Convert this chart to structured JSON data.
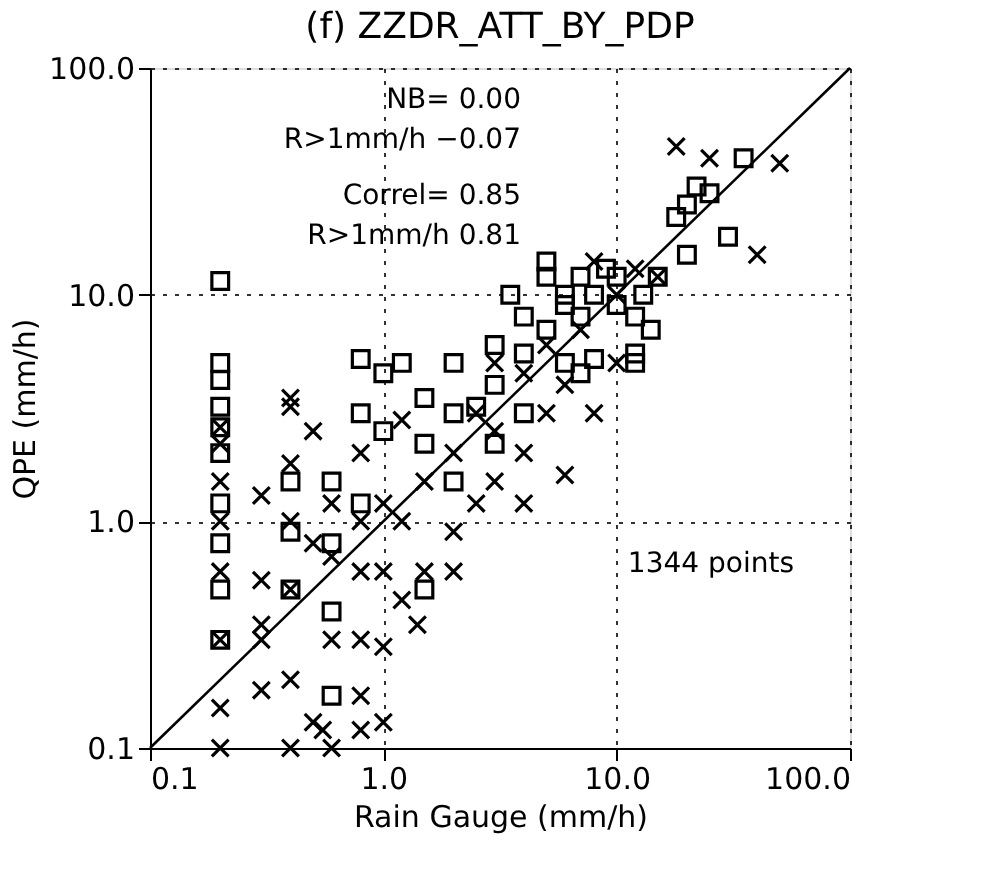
{
  "chart_data": {
    "type": "scatter",
    "title": "(f) ZZDR_ATT_BY_PDP",
    "xlabel": "Rain Gauge (mm/h)",
    "ylabel": "QPE (mm/h)",
    "log": "xy",
    "grid": true,
    "xlim": [
      0.1,
      100
    ],
    "ylim": [
      0.1,
      100
    ],
    "xticks": [
      0.1,
      {
        "value": 1,
        "label": "1.0"
      },
      {
        "value": 10,
        "label": "10.0"
      },
      {
        "value": 100,
        "label": "100.0"
      }
    ],
    "yticks": [
      0.1,
      {
        "value": 1,
        "label": "1.0"
      },
      {
        "value": 10,
        "label": "10.0"
      },
      {
        "value": 100,
        "label": "100.0"
      }
    ],
    "annotations": [
      "NB= 0.00",
      "R>1mm/h −0.07",
      "Correl= 0.85",
      "R>1mm/h 0.81",
      "1344 points"
    ],
    "series": [
      {
        "type": "line",
        "color": "#000000",
        "marker": "none",
        "line_style": "solid",
        "x": [
          0.1,
          100
        ],
        "values": [
          0.1,
          100
        ]
      },
      {
        "color": "#000000",
        "marker": "square",
        "x": [
          0.2,
          0.2,
          0.2,
          0.2,
          0.2,
          0.2,
          0.2,
          0.2,
          0.2,
          0.2,
          0.4,
          0.4,
          0.4,
          0.6,
          0.6,
          0.6,
          0.6,
          0.8,
          0.8,
          0.8,
          1.0,
          1.0,
          1.2,
          1.5,
          1.5,
          1.5,
          2,
          2,
          2,
          2.5,
          3,
          3,
          3,
          3.5,
          4,
          4,
          4,
          5,
          5,
          5,
          6,
          6,
          6,
          7,
          7,
          8,
          8,
          9,
          10,
          10,
          12,
          12,
          13,
          14,
          15,
          18,
          20,
          20,
          22,
          25,
          30,
          35,
          12,
          7
        ],
        "values": [
          11.5,
          5.0,
          4.2,
          3.2,
          2.6,
          2.0,
          1.2,
          0.8,
          0.5,
          0.3,
          1.5,
          0.9,
          0.5,
          1.5,
          0.8,
          0.4,
          0.17,
          3.0,
          5.2,
          1.2,
          2.5,
          4.5,
          5.0,
          2.2,
          0.5,
          3.5,
          3,
          5,
          1.5,
          3.2,
          6,
          4,
          2.2,
          10,
          8,
          5.5,
          3,
          7,
          12,
          14,
          5,
          9,
          10,
          12,
          8,
          10,
          5.2,
          13,
          12,
          9,
          8,
          5,
          10,
          7,
          12,
          22,
          25,
          15,
          30,
          28,
          18,
          40,
          5.5,
          4.5
        ]
      },
      {
        "color": "#000000",
        "marker": "cross",
        "x": [
          0.2,
          0.2,
          0.2,
          0.2,
          0.2,
          0.2,
          0.2,
          0.2,
          0.3,
          0.3,
          0.3,
          0.3,
          0.3,
          0.4,
          0.4,
          0.4,
          0.4,
          0.4,
          0.4,
          0.4,
          0.5,
          0.5,
          0.5,
          0.55,
          0.6,
          0.6,
          0.6,
          0.6,
          0.8,
          0.8,
          0.8,
          0.8,
          0.8,
          0.8,
          1.0,
          1.0,
          1.0,
          1.0,
          1.2,
          1.2,
          1.2,
          1.4,
          1.5,
          1.5,
          2,
          2,
          2,
          2.5,
          2.5,
          3,
          3,
          3,
          4,
          4,
          4,
          5,
          5,
          6,
          6,
          7,
          8,
          10,
          12,
          15,
          18,
          25,
          50,
          40,
          10,
          8
        ],
        "values": [
          0.1,
          0.15,
          0.3,
          0.6,
          1.0,
          1.5,
          2.2,
          2.6,
          1.3,
          0.55,
          0.35,
          0.3,
          0.18,
          0.1,
          0.2,
          0.5,
          1.0,
          1.8,
          3.2,
          3.5,
          0.13,
          0.8,
          2.5,
          0.12,
          0.1,
          0.3,
          0.7,
          1.2,
          0.12,
          0.17,
          0.3,
          0.6,
          1.0,
          2.0,
          0.13,
          0.28,
          0.6,
          1.2,
          0.45,
          1.0,
          2.8,
          0.35,
          0.6,
          1.5,
          0.6,
          0.9,
          2.0,
          1.2,
          3,
          1.5,
          2.5,
          5,
          1.2,
          2,
          4.5,
          3,
          6,
          1.6,
          4,
          7,
          14,
          10,
          13,
          12,
          45,
          40,
          38,
          15,
          5,
          3
        ]
      }
    ]
  }
}
